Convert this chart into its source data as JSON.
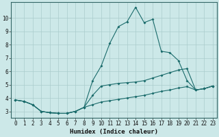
{
  "xlabel": "Humidex (Indice chaleur)",
  "ylabel": "",
  "background_color": "#cce8e8",
  "line_color": "#1a6b6b",
  "grid_color": "#aacccc",
  "xlim": [
    -0.5,
    23.5
  ],
  "ylim": [
    2.5,
    11.2
  ],
  "yticks": [
    3,
    4,
    5,
    6,
    7,
    8,
    9,
    10
  ],
  "xticks": [
    0,
    1,
    2,
    3,
    4,
    5,
    6,
    7,
    8,
    9,
    10,
    11,
    12,
    13,
    14,
    15,
    16,
    17,
    18,
    19,
    20,
    21,
    22,
    23
  ],
  "line1_x": [
    0,
    1,
    2,
    3,
    4,
    5,
    6,
    7,
    8,
    9,
    10,
    11,
    12,
    13,
    14,
    15,
    16,
    17,
    18,
    19,
    20,
    21,
    22,
    23
  ],
  "line1_y": [
    3.85,
    3.75,
    3.5,
    3.0,
    2.9,
    2.85,
    2.85,
    3.0,
    3.3,
    5.3,
    6.4,
    8.1,
    9.35,
    9.7,
    10.8,
    9.65,
    9.9,
    7.5,
    7.4,
    6.8,
    5.3,
    4.6,
    4.7,
    4.9
  ],
  "line2_x": [
    0,
    1,
    2,
    3,
    4,
    5,
    6,
    7,
    8,
    9,
    10,
    11,
    12,
    13,
    14,
    15,
    16,
    17,
    18,
    19,
    20,
    21,
    22,
    23
  ],
  "line2_y": [
    3.85,
    3.75,
    3.5,
    3.0,
    2.9,
    2.85,
    2.85,
    3.0,
    3.3,
    4.2,
    4.9,
    5.0,
    5.1,
    5.15,
    5.2,
    5.3,
    5.5,
    5.7,
    5.9,
    6.1,
    6.2,
    4.6,
    4.7,
    4.9
  ],
  "line3_x": [
    0,
    1,
    2,
    3,
    4,
    5,
    6,
    7,
    8,
    9,
    10,
    11,
    12,
    13,
    14,
    15,
    16,
    17,
    18,
    19,
    20,
    21,
    22,
    23
  ],
  "line3_y": [
    3.85,
    3.75,
    3.5,
    3.0,
    2.9,
    2.85,
    2.85,
    3.0,
    3.3,
    3.5,
    3.7,
    3.8,
    3.9,
    4.0,
    4.1,
    4.2,
    4.35,
    4.5,
    4.6,
    4.75,
    4.85,
    4.6,
    4.7,
    4.9
  ],
  "tick_fontsize": 5.5,
  "xlabel_fontsize": 6.5,
  "marker_size": 2.0,
  "line_width": 0.8
}
